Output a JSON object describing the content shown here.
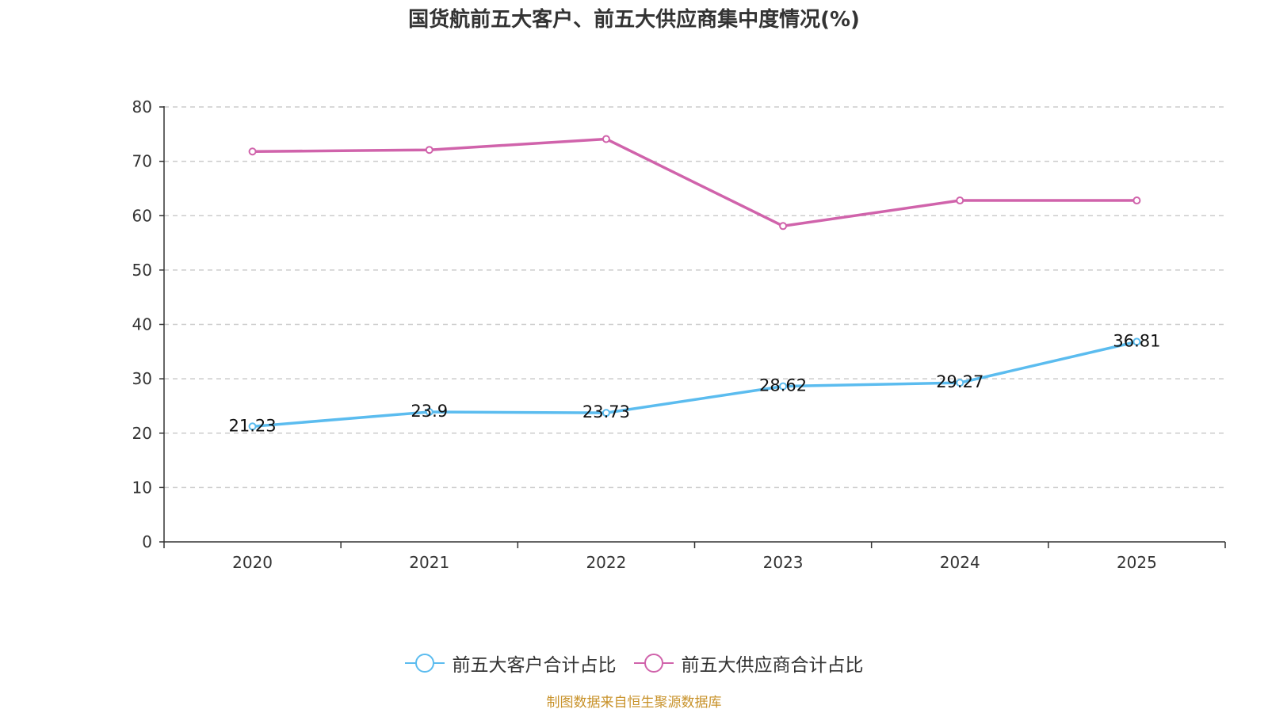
{
  "chart_data": {
    "type": "line",
    "title": "国货航前五大客户、前五大供应商集中度情况(%)",
    "categories": [
      "2020",
      "2021",
      "2022",
      "2023",
      "2024",
      "2025"
    ],
    "ylim": [
      0,
      80
    ],
    "yticks": [
      0,
      10,
      20,
      30,
      40,
      50,
      60,
      70,
      80
    ],
    "grid": true,
    "legend_position": "bottom",
    "series": [
      {
        "name": "前五大客户合计占比",
        "color": "#5bbcef",
        "values": [
          21.23,
          23.9,
          23.73,
          28.62,
          29.27,
          36.81
        ],
        "labels": [
          "21.23",
          "23.9",
          "23.73",
          "28.62",
          "29.27",
          "36.81"
        ],
        "show_labels": true
      },
      {
        "name": "前五大供应商合计占比",
        "color": "#d063ab",
        "values": [
          71.8,
          72.1,
          74.1,
          58.1,
          62.8,
          62.8
        ],
        "show_labels": false
      }
    ]
  },
  "footer": {
    "source": "制图数据来自恒生聚源数据库"
  }
}
